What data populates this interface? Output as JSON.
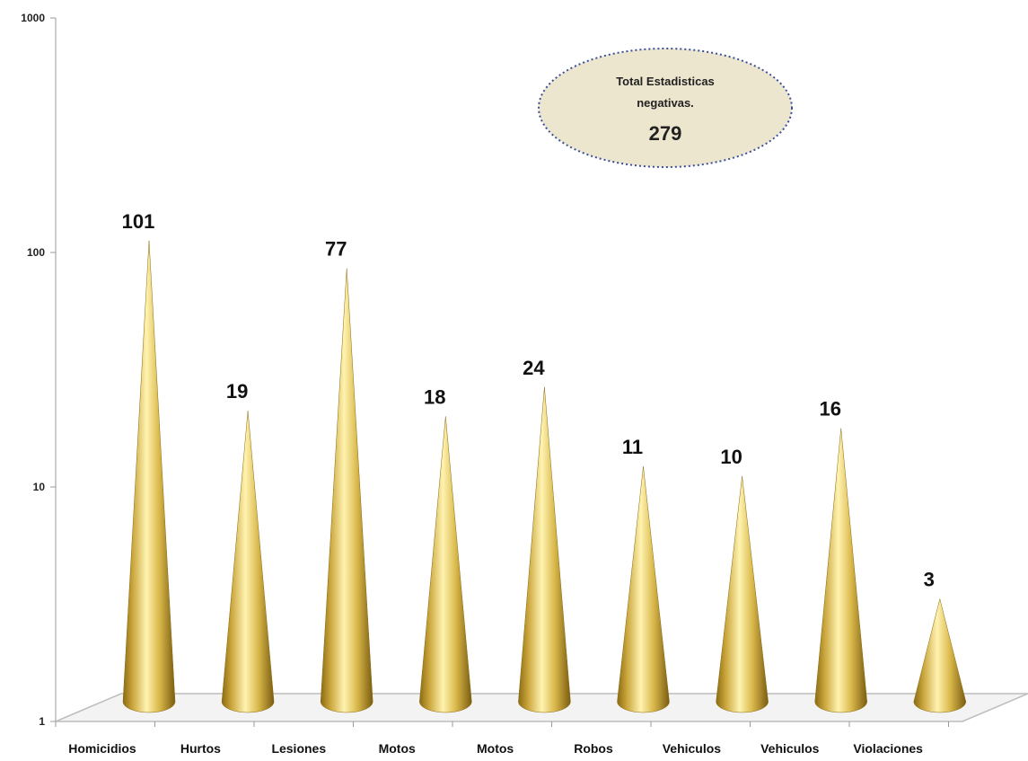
{
  "chart_data": {
    "type": "bar",
    "bar_shape": "cone",
    "categories": [
      "Homicidios",
      "Hurtos",
      "Lesiones",
      "Motos",
      "Motos",
      "Robos",
      "Vehiculos",
      "Vehiculos",
      "Violaciones"
    ],
    "values": [
      101,
      19,
      77,
      18,
      24,
      11,
      10,
      16,
      3
    ],
    "data_labels": [
      "101",
      "19",
      "77",
      "18",
      "24",
      "11",
      "10",
      "16",
      "3"
    ],
    "y_scale": "log",
    "ylim": [
      1,
      1000
    ],
    "y_ticks": [
      1,
      10,
      100,
      1000
    ],
    "y_tick_labels": [
      "1",
      "10",
      "100",
      "1000"
    ],
    "grid": false,
    "legend": "none",
    "annotation": {
      "line1": "Total  Estadisticas",
      "line2": "negativas.",
      "total": "279"
    },
    "colors": {
      "cone_dark": "#8a6b14",
      "cone_mid": "#d9b84a",
      "cone_light": "#fff3b0",
      "annotation_fill": "#ece6cf",
      "annotation_border": "#3a4f9a",
      "axis": "#bbbbbb"
    }
  }
}
